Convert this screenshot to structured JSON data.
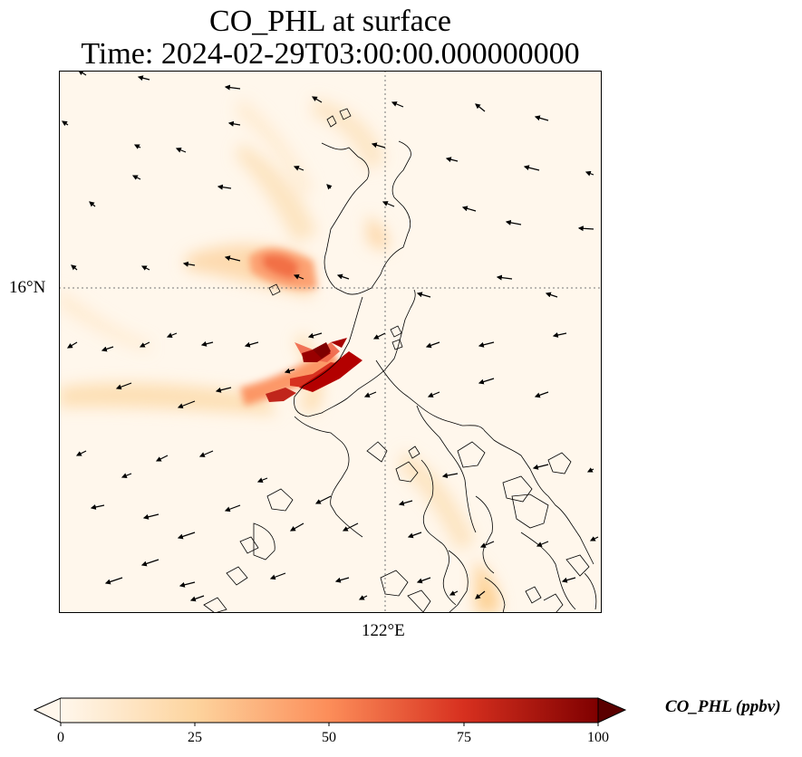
{
  "figure": {
    "title_line1": "CO_PHL at surface",
    "title_line2": "Time: 2024-02-29T03:00:00.000000000"
  },
  "map": {
    "lat_tick_label": "16°N",
    "lon_tick_label": "122°E",
    "colormap": "OrRd",
    "colors": {
      "low": "#fff7ec",
      "mid_low": "#fdd49e",
      "mid": "#fc8d59",
      "high": "#d7301f",
      "max": "#7f0000",
      "coastline": "#000000",
      "gridline": "#777777"
    },
    "wind_vectors": "black arrows, predominantly easterly/north-easterly flow"
  },
  "colorbar": {
    "label": "CO_PHL (ppbv)",
    "ticks": [
      "0",
      "25",
      "50",
      "75",
      "100"
    ],
    "min": 0,
    "max": 100,
    "extend": "both"
  }
}
